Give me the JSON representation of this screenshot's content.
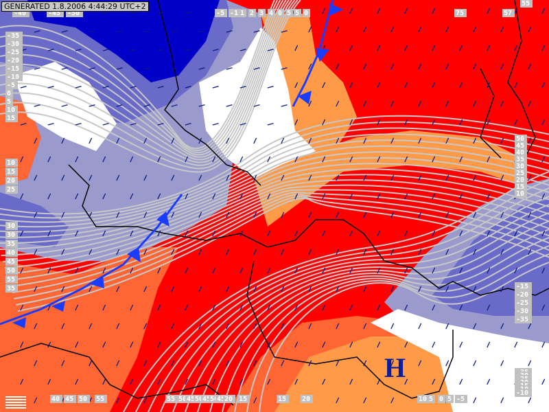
{
  "header": {
    "generated": "GENERATED 1.8.2006 4:44:29 UTC+2"
  },
  "pressure_center": {
    "label": "H",
    "color": "#0a1e9c"
  },
  "colors": {
    "deep_blue": "#0000c8",
    "blue": "#6a6ac8",
    "lavender": "#9a9acc",
    "pale": "#c4c4e4",
    "white": "#ffffff",
    "light_orange": "#ff9a48",
    "orange": "#ff6633",
    "red": "#ff0000",
    "front": "#1a3cff",
    "wind": "#0a1a80",
    "border": "#000000",
    "contour": "#c8c8c8"
  },
  "fronts": [
    {
      "type": "cold-front"
    },
    {
      "type": "cold-front"
    }
  ],
  "contour_labels": {
    "top": [
      "-40",
      "-45",
      "-50",
      "-5",
      "-1",
      "1",
      "2",
      "3",
      "4",
      "0",
      "5",
      "5",
      "0",
      "75",
      "57",
      "55"
    ],
    "left": [
      "-35",
      "-30",
      "-25",
      "-20",
      "-15",
      "-10",
      "-5",
      "0",
      "5",
      "10",
      "15",
      "10",
      "15",
      "20",
      "25",
      "30",
      "30",
      "35",
      "40",
      "45",
      "50",
      "55",
      "35"
    ],
    "right": [
      "50",
      "45",
      "40",
      "35",
      "30",
      "25",
      "20",
      "15",
      "10",
      "-15",
      "-20",
      "-25",
      "-30",
      "-35",
      "-35",
      "-30",
      "-25",
      "-20",
      "-15",
      "-10",
      "-10"
    ],
    "bottom": [
      "40",
      "45",
      "50",
      "55",
      "55",
      "50",
      "45",
      "50",
      "45",
      "50",
      "45",
      "20",
      "15",
      "15",
      "20",
      "10",
      "5",
      "0",
      "5",
      "-5"
    ]
  }
}
